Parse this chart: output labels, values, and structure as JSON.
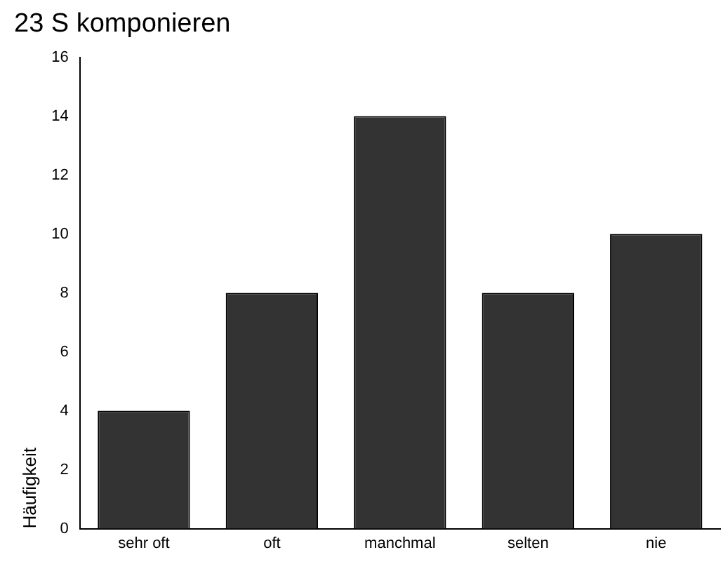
{
  "chart_data": {
    "type": "bar",
    "title": "23 S komponieren",
    "ylabel": "Häufigkeit",
    "categories": [
      "sehr oft",
      "oft",
      "manchmal",
      "selten",
      "nie"
    ],
    "values": [
      4,
      8,
      14,
      8,
      10
    ],
    "color": "#333333",
    "ylim": [
      0,
      16
    ],
    "yticks": [
      0,
      2,
      4,
      6,
      8,
      10,
      12,
      14,
      16
    ],
    "grid": false,
    "legend": false
  }
}
